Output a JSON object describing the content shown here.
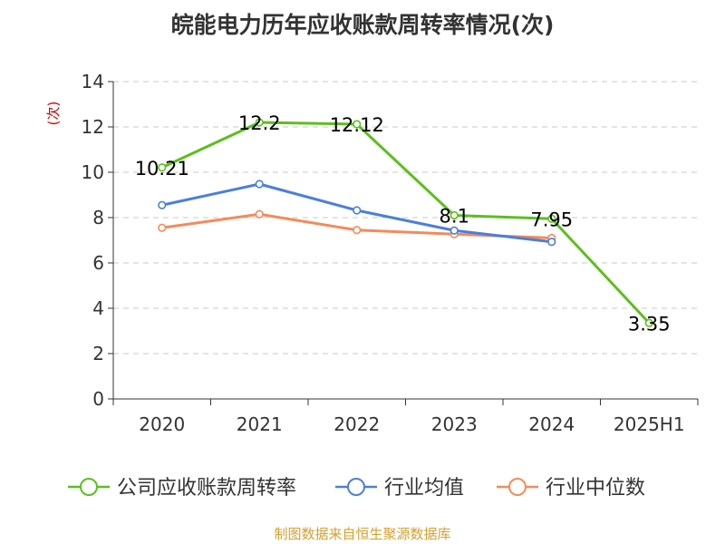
{
  "chart_data": {
    "type": "line",
    "title": "皖能电力历年应收账款周转率情况(次)",
    "ylabel": "(次)",
    "ylim": [
      0,
      14
    ],
    "y_ticks": [
      0,
      2,
      4,
      6,
      8,
      10,
      12,
      14
    ],
    "categories": [
      "2020",
      "2021",
      "2022",
      "2023",
      "2024",
      "2025H1"
    ],
    "grid": true,
    "legend_position": "bottom",
    "series": [
      {
        "name": "公司应收账款周转率",
        "color": "#5cbf1e",
        "show_labels": true,
        "values": [
          10.21,
          12.2,
          12.12,
          8.1,
          7.95,
          3.35
        ],
        "labels": [
          "10.21",
          "12.2",
          "12.12",
          "8.1",
          "7.95",
          "3.35"
        ]
      },
      {
        "name": "行业均值",
        "color": "#4a7fdc",
        "show_labels": false,
        "values": [
          8.55,
          9.48,
          8.32,
          7.43,
          6.93,
          null
        ]
      },
      {
        "name": "行业中位数",
        "color": "#f58a5a",
        "show_labels": false,
        "values": [
          7.55,
          8.15,
          7.45,
          7.27,
          7.1,
          null
        ]
      }
    ]
  },
  "source_note": "制图数据来自恒生聚源数据库"
}
